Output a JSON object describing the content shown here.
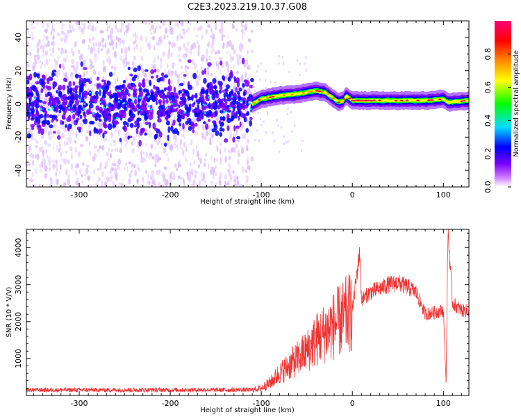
{
  "title": "C2E3.2023.219.10.37.G08",
  "colors": {
    "snr_line": "#ee3333",
    "colormap": [
      "#cc77ff",
      "#7700ff",
      "#0000ff",
      "#00ddff",
      "#00ff00",
      "#ffff00",
      "#ff8800",
      "#ff0000",
      "#ff0077"
    ]
  },
  "chart_data": [
    {
      "type": "heatmap",
      "xlabel": "Height of straight line (km)",
      "ylabel": "Frequency (Hz)",
      "xlim": [
        -358,
        128
      ],
      "ylim": [
        -50,
        50
      ],
      "xticks": [
        -300,
        -200,
        -100,
        0,
        100
      ],
      "xtick_labels": [
        "-300",
        "-200",
        "-100",
        "0",
        "100"
      ],
      "yticks": [
        -40,
        -20,
        0,
        20,
        40
      ],
      "ytick_labels": [
        "-40",
        "-20",
        "0",
        "20",
        "40"
      ],
      "colorbar": {
        "label": "Normalized spectral amplitude",
        "range": [
          0,
          1
        ],
        "ticks": [
          0.0,
          0.2,
          0.4,
          0.6,
          0.8
        ],
        "tick_labels": [
          "0.0",
          "0.2",
          "0.4",
          "0.6",
          "0.8"
        ]
      },
      "ridge_frequency": {
        "x": [
          -358,
          -110,
          -100,
          -80,
          -60,
          -40,
          -30,
          -20,
          -15,
          -10,
          -7,
          0,
          20,
          50,
          80,
          100,
          105,
          128
        ],
        "y": [
          0,
          0,
          3,
          5,
          6,
          8,
          7,
          3,
          1,
          2,
          5,
          2,
          2,
          2,
          2,
          3,
          1,
          2
        ]
      },
      "regions": [
        {
          "x_range": [
            -358,
            -110
          ],
          "description_value": "broadband noise, amplitude 0.1-0.3, spread up to +/-50 Hz"
        },
        {
          "x_range": [
            -110,
            128
          ],
          "description_value": "narrow ridge, amplitude 0.5-0.9"
        }
      ]
    },
    {
      "type": "line",
      "xlabel": "Height of straight line (km)",
      "ylabel": "SNR (10 * V/V)",
      "xlim": [
        -358,
        128
      ],
      "ylim": [
        0,
        4500
      ],
      "xticks": [
        -300,
        -200,
        -100,
        0,
        100
      ],
      "xtick_labels": [
        "-300",
        "-200",
        "-100",
        "0",
        "100"
      ],
      "yticks": [
        1000,
        2000,
        3000,
        4000
      ],
      "ytick_labels": [
        "1000",
        "2000",
        "3000",
        "4000"
      ],
      "series": [
        {
          "x": [
            -358,
            -300,
            -200,
            -110,
            -100,
            -90,
            -80,
            -70,
            -60,
            -50,
            -40,
            -30,
            -20,
            -10,
            0,
            8,
            10,
            20,
            30,
            40,
            50,
            60,
            70,
            80,
            90,
            100,
            103,
            105,
            110,
            120,
            128
          ],
          "y": [
            150,
            150,
            150,
            150,
            200,
            350,
            600,
            800,
            1000,
            1200,
            1500,
            1700,
            1900,
            2100,
            2300,
            3900,
            2600,
            2800,
            2900,
            3000,
            3050,
            2950,
            2800,
            2200,
            2250,
            2300,
            300,
            4500,
            2500,
            2300,
            2300
          ]
        }
      ]
    }
  ]
}
